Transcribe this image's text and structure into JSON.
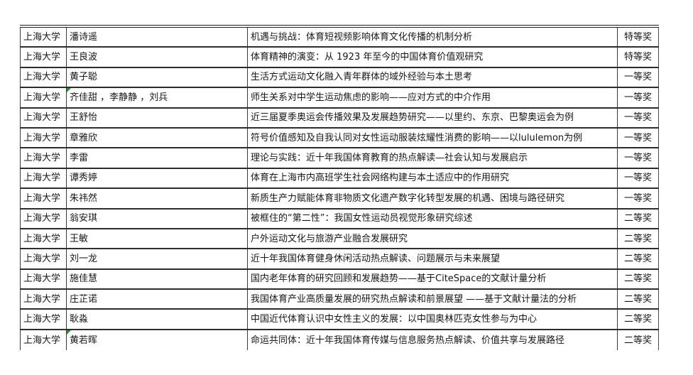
{
  "page": {
    "background": "#ffffff"
  },
  "table": {
    "border_color": "#2d2d2d",
    "marker_color": "#2e8b2e",
    "award_levels": [
      "特等奖",
      "一等奖",
      "二等奖"
    ],
    "rows": [
      {
        "university": "上海大学",
        "authors": "潘诗遥",
        "title": "机遇与挑战：体育短视频影响体育文化传播的机制分析",
        "award": "特等奖",
        "marker": false
      },
      {
        "university": "上海大学",
        "authors": "王良波",
        "title": "体育精神的演变：从 1923 年至今的中国体育价值观研究",
        "award": "特等奖",
        "marker": false
      },
      {
        "university": "上海大学",
        "authors": "黄子聪",
        "title": "生活方式运动文化融入青年群体的域外经验与本土思考",
        "award": "一等奖",
        "marker": false
      },
      {
        "university": "上海大学",
        "authors": "齐佳甜 ，李静静 ，刘兵",
        "title": "师生关系对中学生运动焦虑的影响——应对方式的中介作用",
        "award": "一等奖",
        "marker": true
      },
      {
        "university": "上海大学",
        "authors": "王舒怡",
        "title": "近三届夏季奥运会传播效果及发展趋势研究——以里约、东京、巴黎奥运会为例",
        "award": "一等奖",
        "marker": false
      },
      {
        "university": "上海大学",
        "authors": "章雅欣",
        "title": "符号价值感知及自我认同对女性运动服装炫耀性消费的影响——以lululemon为例",
        "award": "一等奖",
        "marker": false
      },
      {
        "university": "上海大学",
        "authors": "李雷",
        "title": "理论与实践：近十年我国体育教育的热点解读—社会认知与发展启示",
        "award": "一等奖",
        "marker": false
      },
      {
        "university": "上海大学",
        "authors": "谭秀婷",
        "title": "体育在上海市内高班学生社会网络构建与本土适应中的作用研究",
        "award": "一等奖",
        "marker": false
      },
      {
        "university": "上海大学",
        "authors": "朱祎然",
        "title": "新质生产力赋能体育非物质文化遗产数字化转型发展的机遇、困境与路径研究",
        "award": "一等奖",
        "marker": false
      },
      {
        "university": "上海大学",
        "authors": "翁安琪",
        "title": "被框住的“第二性”：我国女性运动员视觉形象研究综述",
        "award": "二等奖",
        "marker": false
      },
      {
        "university": "上海大学",
        "authors": "王敏",
        "title": "户外运动文化与旅游产业融合发展研究",
        "award": "二等奖",
        "marker": false
      },
      {
        "university": "上海大学",
        "authors": "刘一龙",
        "title": "近十年我国体育健身休闲活动热点解读、问题展示与未来展望",
        "award": "二等奖",
        "marker": false
      },
      {
        "university": "上海大学",
        "authors": "施佳慧",
        "title": "国内老年体育的研究回顾和发展趋势——基于CiteSpace的文献计量分析",
        "award": "二等奖",
        "marker": false
      },
      {
        "university": "上海大学",
        "authors": "庄芷诺",
        "title": "我国体育产业高质量发展的研究热点解读和前景展望 ——基于文献计量法的分析",
        "award": "二等奖",
        "marker": false
      },
      {
        "university": "上海大学",
        "authors": "耿淼",
        "title": "中国近代体育认识中女性主义的发展：以中国奥林匹克女性参与为中心",
        "award": "二等奖",
        "marker": false
      },
      {
        "university": "上海大学",
        "authors": "黄若晖",
        "title": "命运共同体：近十年我国体育传媒与信息服务热点解读、价值共享与发展路径",
        "award": "二等奖",
        "marker": true
      }
    ]
  }
}
